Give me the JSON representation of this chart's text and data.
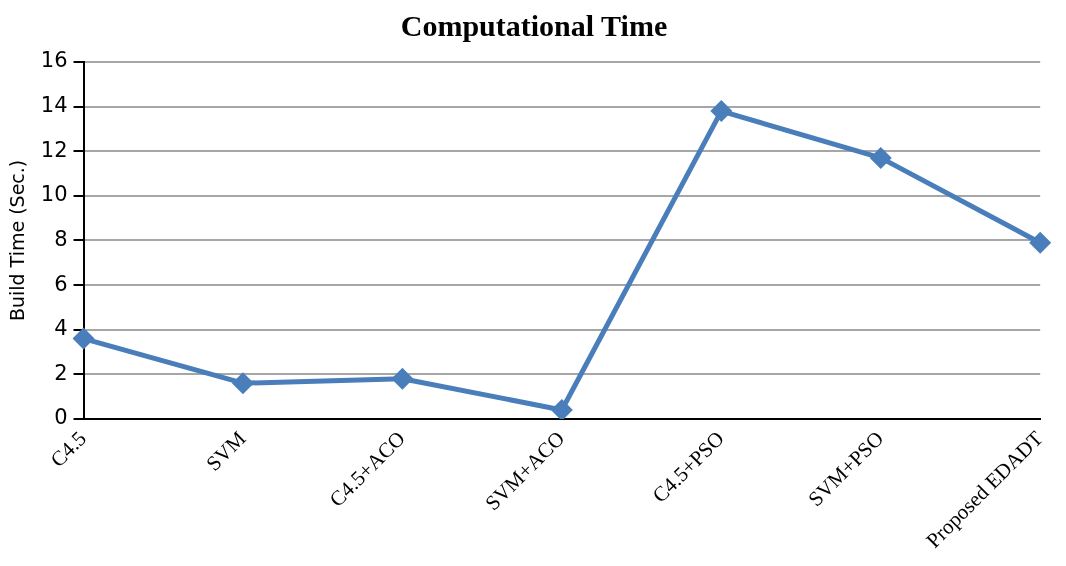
{
  "chart_data": {
    "type": "line",
    "title": "Computational Time",
    "ylabel": "Build Time (Sec.)",
    "categories": [
      "C4.5",
      "SVM",
      "C4.5+ACO",
      "SVM+ACO",
      "C4.5+PSO",
      "SVM+PSO",
      "Proposed EDADT"
    ],
    "series": [
      {
        "color": "#4a7ebb",
        "values": [
          3.6,
          1.6,
          1.8,
          0.4,
          13.8,
          11.7,
          7.9
        ]
      }
    ],
    "ylim": [
      0,
      16
    ],
    "yticks": [
      0,
      2,
      4,
      6,
      8,
      10,
      12,
      14,
      16
    ],
    "grid": "y",
    "legend": false,
    "marker": "diamond",
    "line_style": "solid"
  }
}
